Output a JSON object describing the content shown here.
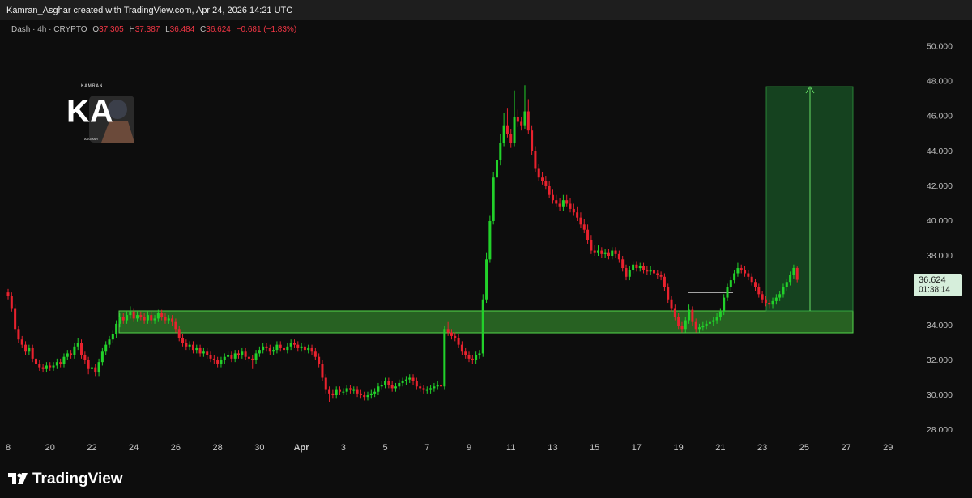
{
  "header": "Kamran_Asghar created with TradingView.com, Apr 24, 2026 14:21 UTC",
  "brand": "TradingView",
  "watermark": {
    "top": "KAMRAN",
    "letters": "KA",
    "bottom": "ASGHAR"
  },
  "chart_data": {
    "type": "candlestick",
    "title": "Dash · 4h · CRYPTO",
    "legend_letters": [
      "O",
      "H",
      "L",
      "C"
    ],
    "change_label": "−0.681 (−1.83%)",
    "countdown": "01:38:14",
    "up_color": "#22d12a",
    "down_color": "#e8222e",
    "open": [
      35.9,
      35.7,
      35.0,
      33.8,
      33.2,
      32.9,
      32.5,
      32.7,
      32.1,
      31.8,
      31.6,
      31.5,
      31.7,
      31.6,
      31.7,
      31.9,
      31.8,
      32.2,
      32.4,
      32.3,
      32.8,
      33.0,
      32.3,
      32.0,
      31.5,
      31.6,
      31.3,
      31.9,
      32.5,
      32.9,
      33.2,
      33.5,
      34.1,
      34.5,
      34.3,
      34.6,
      34.8,
      34.4,
      34.6,
      34.5,
      34.3,
      34.6,
      34.3,
      34.4,
      34.7,
      34.5,
      34.3,
      34.4,
      34.2,
      33.8,
      33.3,
      33.0,
      32.8,
      32.9,
      32.6,
      32.7,
      32.4,
      32.5,
      32.3,
      32.1,
      32.0,
      31.8,
      32.0,
      32.2,
      32.3,
      32.1,
      32.4,
      32.3,
      32.5,
      32.2,
      32.1,
      32.0,
      32.4,
      32.6,
      32.8,
      32.7,
      32.5,
      32.6,
      32.9,
      32.7,
      32.6,
      32.8,
      33.0,
      32.9,
      32.7,
      32.8,
      32.6,
      32.7,
      32.5,
      32.2,
      31.8,
      31.0,
      30.3,
      30.1,
      30.0,
      30.3,
      30.2,
      30.2,
      30.4,
      30.3,
      30.3,
      30.1,
      30.0,
      29.9,
      30.0,
      30.1,
      30.2,
      30.5,
      30.6,
      30.8,
      30.6,
      30.4,
      30.5,
      30.7,
      30.8,
      30.9,
      31.0,
      30.8,
      30.5,
      30.4,
      30.3,
      30.3,
      30.4,
      30.5,
      30.6,
      30.5,
      33.8,
      33.6,
      33.4,
      33.3,
      32.9,
      32.5,
      32.3,
      32.1,
      32.0,
      32.3,
      32.4,
      35.5,
      37.8,
      40.0,
      42.5,
      43.5,
      44.5,
      45.5,
      45.0,
      44.5,
      46.0,
      45.7,
      45.5,
      46.3,
      45.2,
      44.0,
      43.0,
      42.5,
      42.3,
      42.0,
      41.5,
      41.2,
      41.0,
      40.8,
      41.2,
      41.0,
      40.7,
      40.5,
      40.2,
      39.8,
      39.5,
      38.9,
      38.3,
      38.2,
      38.3,
      38.1,
      38.2,
      38.0,
      38.3,
      38.1,
      37.8,
      37.3,
      36.8,
      37.2,
      37.5,
      37.3,
      37.4,
      37.2,
      37.1,
      37.2,
      37.0,
      36.9,
      36.8,
      36.2,
      35.5,
      35.0,
      34.5,
      34.0,
      33.8,
      34.3,
      34.9,
      34.2,
      33.8,
      33.9,
      34.0,
      34.1,
      34.2,
      34.3,
      34.5,
      34.8,
      35.6,
      36.2,
      36.6,
      37.0,
      37.3,
      37.2,
      37.0,
      36.8,
      36.5,
      36.2,
      35.8,
      35.5,
      35.3,
      35.2,
      35.4,
      35.6,
      35.8,
      36.2,
      36.5,
      36.9,
      37.305
    ],
    "high": [
      36.1,
      35.9,
      35.2,
      34.0,
      33.4,
      33.1,
      32.9,
      32.9,
      32.3,
      32.0,
      31.8,
      31.9,
      31.9,
      31.9,
      32.1,
      32.1,
      32.4,
      32.6,
      32.6,
      33.0,
      33.3,
      33.2,
      32.5,
      32.2,
      31.8,
      31.8,
      32.1,
      32.7,
      33.1,
      33.4,
      33.7,
      34.3,
      34.7,
      34.7,
      34.8,
      35.1,
      35.0,
      34.8,
      34.8,
      34.7,
      34.8,
      34.8,
      34.6,
      34.9,
      34.9,
      34.7,
      34.6,
      34.6,
      34.4,
      34.0,
      33.5,
      33.2,
      33.1,
      33.1,
      32.9,
      32.9,
      32.7,
      32.7,
      32.5,
      32.3,
      32.2,
      32.2,
      32.4,
      32.5,
      32.5,
      32.6,
      32.6,
      32.7,
      32.7,
      32.4,
      32.3,
      32.6,
      32.8,
      33.0,
      33.0,
      32.9,
      32.8,
      33.1,
      33.1,
      32.9,
      33.0,
      33.2,
      33.2,
      33.1,
      33.0,
      33.0,
      32.9,
      32.9,
      32.7,
      32.4,
      32.0,
      31.2,
      30.5,
      30.3,
      30.5,
      30.5,
      30.4,
      30.6,
      30.6,
      30.5,
      30.5,
      30.3,
      30.2,
      30.2,
      30.3,
      30.4,
      30.7,
      30.8,
      31.0,
      31.0,
      30.8,
      30.7,
      30.9,
      31.0,
      31.1,
      31.2,
      31.2,
      31.0,
      30.7,
      30.6,
      30.5,
      30.6,
      30.7,
      30.8,
      30.8,
      34.0,
      34.2,
      33.8,
      33.6,
      33.5,
      33.1,
      32.7,
      32.5,
      32.3,
      32.5,
      32.6,
      35.8,
      38.2,
      40.3,
      42.8,
      44.0,
      45.0,
      46.2,
      46.5,
      45.3,
      47.5,
      46.4,
      46.0,
      47.8,
      47.0,
      45.5,
      44.3,
      43.3,
      42.8,
      42.6,
      42.3,
      41.8,
      41.5,
      41.3,
      41.5,
      41.5,
      41.3,
      41.0,
      40.8,
      40.5,
      40.1,
      39.8,
      39.2,
      38.6,
      38.6,
      38.5,
      38.4,
      38.4,
      38.5,
      38.5,
      38.3,
      38.0,
      37.5,
      37.4,
      37.7,
      37.7,
      37.6,
      37.6,
      37.4,
      37.4,
      37.4,
      37.2,
      37.1,
      37.0,
      36.4,
      35.7,
      35.2,
      34.7,
      34.2,
      34.5,
      35.2,
      35.1,
      34.4,
      34.1,
      34.2,
      34.3,
      34.4,
      34.5,
      34.7,
      35.0,
      35.8,
      36.4,
      36.8,
      37.2,
      37.6,
      37.5,
      37.4,
      37.2,
      37.0,
      36.7,
      36.4,
      36.0,
      35.7,
      35.5,
      35.6,
      35.8,
      36.0,
      36.4,
      36.7,
      37.1,
      37.5,
      37.387
    ],
    "low": [
      35.5,
      34.8,
      33.6,
      33.0,
      32.7,
      32.3,
      32.3,
      31.9,
      31.6,
      31.4,
      31.3,
      31.3,
      31.4,
      31.4,
      31.5,
      31.6,
      31.6,
      32.0,
      32.1,
      32.1,
      32.6,
      32.1,
      31.8,
      31.2,
      31.3,
      31.1,
      31.1,
      31.7,
      32.3,
      32.7,
      33.0,
      33.3,
      33.9,
      34.1,
      34.1,
      34.4,
      34.2,
      34.2,
      34.3,
      34.1,
      34.1,
      34.1,
      34.1,
      34.2,
      34.3,
      34.1,
      34.1,
      34.0,
      33.6,
      33.1,
      32.8,
      32.6,
      32.6,
      32.4,
      32.4,
      32.2,
      32.2,
      32.1,
      31.9,
      31.8,
      31.6,
      31.6,
      31.8,
      32.0,
      31.9,
      31.9,
      32.1,
      32.1,
      32.0,
      31.9,
      31.5,
      31.8,
      32.2,
      32.4,
      32.5,
      32.3,
      32.3,
      32.4,
      32.5,
      32.4,
      32.4,
      32.6,
      32.7,
      32.5,
      32.5,
      32.4,
      32.4,
      32.3,
      32.0,
      31.6,
      30.8,
      30.1,
      29.6,
      29.8,
      29.8,
      30.0,
      30.0,
      30.0,
      30.1,
      30.1,
      29.9,
      29.8,
      29.7,
      29.7,
      29.8,
      29.9,
      30.0,
      30.3,
      30.4,
      30.4,
      30.2,
      30.2,
      30.3,
      30.5,
      30.6,
      30.7,
      30.6,
      30.3,
      30.2,
      30.1,
      30.1,
      30.1,
      30.2,
      30.3,
      30.3,
      30.3,
      33.4,
      33.2,
      33.1,
      32.7,
      32.3,
      32.1,
      31.9,
      31.8,
      31.8,
      32.1,
      32.2,
      35.3,
      37.6,
      39.8,
      42.3,
      43.2,
      44.3,
      44.8,
      44.2,
      44.3,
      45.4,
      45.2,
      45.3,
      45.0,
      43.8,
      42.8,
      42.3,
      42.1,
      41.8,
      41.3,
      41.0,
      40.8,
      40.6,
      40.6,
      40.8,
      40.5,
      40.3,
      40.0,
      39.6,
      39.3,
      38.7,
      38.1,
      38.0,
      38.0,
      37.9,
      37.9,
      37.8,
      37.8,
      37.9,
      37.6,
      37.1,
      36.6,
      36.6,
      37.0,
      37.1,
      37.1,
      37.0,
      36.9,
      36.9,
      36.8,
      36.7,
      36.6,
      36.0,
      35.3,
      34.8,
      34.3,
      33.8,
      33.6,
      33.6,
      34.1,
      34.0,
      33.6,
      33.6,
      33.7,
      33.8,
      33.9,
      34.0,
      34.1,
      34.3,
      34.6,
      35.4,
      36.0,
      36.4,
      36.8,
      37.0,
      36.8,
      36.6,
      36.3,
      36.0,
      35.6,
      35.3,
      35.1,
      35.0,
      35.0,
      35.2,
      35.4,
      35.6,
      36.0,
      36.3,
      36.7,
      36.484
    ],
    "close": [
      35.7,
      35.0,
      33.8,
      33.2,
      32.9,
      32.5,
      32.7,
      32.1,
      31.8,
      31.6,
      31.5,
      31.7,
      31.6,
      31.7,
      31.9,
      31.8,
      32.2,
      32.4,
      32.3,
      32.8,
      33.0,
      32.3,
      32.0,
      31.5,
      31.6,
      31.3,
      31.9,
      32.5,
      32.9,
      33.2,
      33.5,
      34.1,
      34.5,
      34.3,
      34.6,
      34.8,
      34.4,
      34.6,
      34.5,
      34.3,
      34.6,
      34.3,
      34.4,
      34.7,
      34.5,
      34.3,
      34.4,
      34.2,
      33.8,
      33.3,
      33.0,
      32.8,
      32.9,
      32.6,
      32.7,
      32.4,
      32.5,
      32.3,
      32.1,
      32.0,
      31.8,
      32.0,
      32.2,
      32.3,
      32.1,
      32.4,
      32.3,
      32.5,
      32.2,
      32.1,
      32.0,
      32.4,
      32.6,
      32.8,
      32.7,
      32.5,
      32.6,
      32.9,
      32.7,
      32.6,
      32.8,
      33.0,
      32.9,
      32.7,
      32.8,
      32.6,
      32.7,
      32.5,
      32.2,
      31.8,
      31.0,
      30.3,
      30.1,
      30.0,
      30.3,
      30.2,
      30.2,
      30.4,
      30.3,
      30.3,
      30.1,
      30.0,
      29.9,
      30.0,
      30.1,
      30.2,
      30.5,
      30.6,
      30.8,
      30.6,
      30.4,
      30.5,
      30.7,
      30.8,
      30.9,
      31.0,
      30.8,
      30.5,
      30.4,
      30.3,
      30.3,
      30.4,
      30.5,
      30.6,
      30.5,
      33.8,
      33.6,
      33.4,
      33.3,
      32.9,
      32.5,
      32.3,
      32.1,
      32.0,
      32.3,
      32.4,
      35.5,
      37.8,
      40.0,
      42.5,
      43.5,
      44.5,
      45.5,
      45.0,
      44.5,
      46.0,
      45.7,
      45.5,
      46.3,
      45.2,
      44.0,
      43.0,
      42.5,
      42.3,
      42.0,
      41.5,
      41.2,
      41.0,
      40.8,
      41.2,
      41.0,
      40.7,
      40.5,
      40.2,
      39.8,
      39.5,
      38.9,
      38.3,
      38.2,
      38.3,
      38.1,
      38.2,
      38.0,
      38.3,
      38.1,
      37.8,
      37.3,
      36.8,
      37.2,
      37.5,
      37.3,
      37.4,
      37.2,
      37.1,
      37.2,
      37.0,
      36.9,
      36.8,
      36.2,
      35.5,
      35.0,
      34.5,
      34.0,
      33.8,
      34.3,
      34.9,
      34.2,
      33.8,
      33.9,
      34.0,
      34.1,
      34.2,
      34.3,
      34.5,
      34.8,
      35.6,
      36.2,
      36.6,
      37.0,
      37.3,
      37.2,
      37.0,
      36.8,
      36.5,
      36.2,
      35.8,
      35.5,
      35.3,
      35.2,
      35.4,
      35.6,
      35.8,
      36.2,
      36.5,
      36.9,
      37.305,
      36.624
    ],
    "xlim": [
      -2.32,
      257.5
    ],
    "xticks": [
      {
        "value": 0,
        "label": "8"
      },
      {
        "value": 12,
        "label": "20"
      },
      {
        "value": 24,
        "label": "22"
      },
      {
        "value": 36,
        "label": "24"
      },
      {
        "value": 48,
        "label": "26"
      },
      {
        "value": 60,
        "label": "28"
      },
      {
        "value": 72,
        "label": "30"
      },
      {
        "value": 84,
        "label": "Apr"
      },
      {
        "value": 96,
        "label": "3"
      },
      {
        "value": 108,
        "label": "5"
      },
      {
        "value": 120,
        "label": "7"
      },
      {
        "value": 132,
        "label": "9"
      },
      {
        "value": 144,
        "label": "11"
      },
      {
        "value": 156,
        "label": "13"
      },
      {
        "value": 168,
        "label": "15"
      },
      {
        "value": 180,
        "label": "17"
      },
      {
        "value": 192,
        "label": "19"
      },
      {
        "value": 204,
        "label": "21"
      },
      {
        "value": 216,
        "label": "23"
      },
      {
        "value": 228,
        "label": "25"
      },
      {
        "value": 240,
        "label": "27"
      },
      {
        "value": 252,
        "label": "29"
      }
    ],
    "ylim": [
      27.35,
      51.3
    ],
    "yticks": [
      {
        "value": 28,
        "label": "28.000"
      },
      {
        "value": 30,
        "label": "30.000"
      },
      {
        "value": 32,
        "label": "32.000"
      },
      {
        "value": 34,
        "label": "34.000"
      },
      {
        "value": 36,
        "label": "36.000"
      },
      {
        "value": 38,
        "label": "38.000"
      },
      {
        "value": 40,
        "label": "40.000"
      },
      {
        "value": 42,
        "label": "42.000"
      },
      {
        "value": 44,
        "label": "44.000"
      },
      {
        "value": 46,
        "label": "46.000"
      },
      {
        "value": 48,
        "label": "48.000"
      },
      {
        "value": 50,
        "label": "50.000"
      }
    ]
  }
}
